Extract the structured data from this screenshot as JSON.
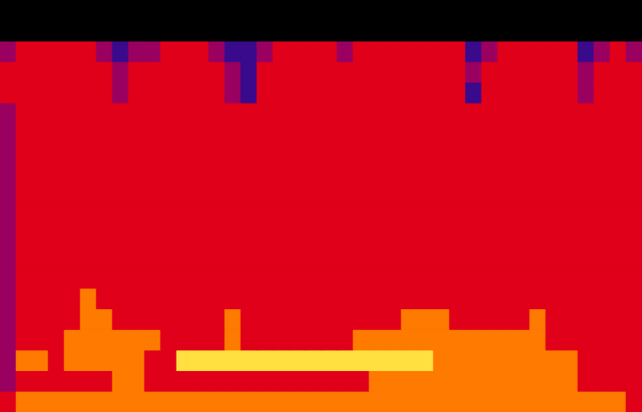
{
  "chart_data": {
    "type": "heatmap",
    "tick_labels": false,
    "grid": false,
    "cells": [
      [
        0,
        0,
        0,
        0,
        0,
        0,
        0,
        0,
        0,
        0,
        0,
        0,
        0,
        0,
        0,
        0,
        0,
        0,
        0,
        0,
        0,
        0,
        0,
        0,
        0,
        0,
        0,
        0,
        0,
        0,
        0,
        0,
        0,
        0,
        0,
        0,
        0,
        0,
        0,
        0
      ],
      [
        0,
        0,
        0,
        0,
        0,
        0,
        0,
        0,
        0,
        0,
        0,
        0,
        0,
        0,
        0,
        0,
        0,
        0,
        0,
        0,
        0,
        0,
        0,
        0,
        0,
        0,
        0,
        0,
        0,
        0,
        0,
        0,
        0,
        0,
        0,
        0,
        0,
        0,
        0,
        0
      ],
      [
        2,
        3,
        3,
        3,
        3,
        3,
        2,
        1,
        2,
        2,
        3,
        3,
        3,
        2,
        1,
        1,
        2,
        3,
        3,
        3,
        3,
        2,
        3,
        3,
        3,
        3,
        3,
        3,
        3,
        1,
        2,
        3,
        3,
        3,
        3,
        3,
        1,
        2,
        3,
        2
      ],
      [
        3,
        3,
        3,
        3,
        3,
        3,
        3,
        2,
        3,
        3,
        3,
        3,
        3,
        3,
        2,
        1,
        3,
        3,
        3,
        3,
        3,
        3,
        3,
        3,
        3,
        3,
        3,
        3,
        3,
        2,
        3,
        3,
        3,
        3,
        3,
        3,
        2,
        3,
        3,
        3
      ],
      [
        3,
        3,
        3,
        3,
        3,
        3,
        3,
        2,
        3,
        3,
        3,
        3,
        3,
        3,
        2,
        1,
        3,
        3,
        3,
        3,
        3,
        3,
        3,
        3,
        3,
        3,
        3,
        3,
        3,
        1,
        3,
        3,
        3,
        3,
        3,
        3,
        2,
        3,
        3,
        3
      ],
      [
        2,
        3,
        3,
        3,
        3,
        3,
        3,
        3,
        3,
        3,
        3,
        3,
        3,
        3,
        3,
        3,
        3,
        3,
        3,
        3,
        3,
        3,
        3,
        3,
        3,
        3,
        3,
        3,
        3,
        3,
        3,
        3,
        3,
        3,
        3,
        3,
        3,
        3,
        3,
        3
      ],
      [
        2,
        3,
        3,
        3,
        3,
        3,
        3,
        3,
        3,
        3,
        3,
        3,
        3,
        3,
        3,
        3,
        3,
        3,
        3,
        3,
        3,
        3,
        3,
        3,
        3,
        3,
        3,
        3,
        3,
        3,
        3,
        3,
        3,
        3,
        3,
        3,
        3,
        3,
        3,
        3
      ],
      [
        2,
        3,
        3,
        3,
        3,
        3,
        3,
        3,
        3,
        3,
        3,
        3,
        3,
        3,
        3,
        3,
        3,
        3,
        3,
        3,
        3,
        3,
        3,
        3,
        3,
        3,
        3,
        3,
        3,
        3,
        3,
        3,
        3,
        3,
        3,
        3,
        3,
        3,
        3,
        3
      ],
      [
        2,
        3,
        3,
        3,
        3,
        3,
        3,
        3,
        3,
        3,
        3,
        3,
        3,
        3,
        3,
        3,
        3,
        3,
        3,
        3,
        3,
        3,
        3,
        3,
        3,
        3,
        3,
        3,
        3,
        3,
        3,
        3,
        3,
        3,
        3,
        3,
        3,
        3,
        3,
        3
      ],
      [
        2,
        3,
        3,
        3,
        3,
        3,
        3,
        3,
        3,
        3,
        3,
        3,
        3,
        3,
        3,
        3,
        3,
        3,
        3,
        3,
        3,
        3,
        3,
        3,
        3,
        3,
        3,
        3,
        3,
        3,
        3,
        3,
        3,
        3,
        3,
        3,
        3,
        3,
        3,
        3
      ],
      [
        2,
        3,
        3,
        3,
        3,
        3,
        3,
        3,
        3,
        3,
        3,
        3,
        3,
        3,
        3,
        3,
        3,
        3,
        3,
        3,
        3,
        3,
        3,
        3,
        3,
        3,
        3,
        3,
        3,
        3,
        3,
        3,
        3,
        3,
        3,
        3,
        3,
        3,
        3,
        3
      ],
      [
        2,
        3,
        3,
        3,
        3,
        3,
        3,
        3,
        3,
        3,
        3,
        3,
        3,
        3,
        3,
        3,
        3,
        3,
        3,
        3,
        3,
        3,
        3,
        3,
        3,
        3,
        3,
        3,
        3,
        3,
        3,
        3,
        3,
        3,
        3,
        3,
        3,
        3,
        3,
        3
      ],
      [
        2,
        3,
        3,
        3,
        3,
        3,
        3,
        3,
        3,
        3,
        3,
        3,
        3,
        3,
        3,
        3,
        3,
        3,
        3,
        3,
        3,
        3,
        3,
        3,
        3,
        3,
        3,
        3,
        3,
        3,
        3,
        3,
        3,
        3,
        3,
        3,
        3,
        3,
        3,
        3
      ],
      [
        2,
        3,
        3,
        3,
        3,
        3,
        3,
        3,
        3,
        3,
        3,
        3,
        3,
        3,
        3,
        3,
        3,
        3,
        3,
        3,
        3,
        3,
        3,
        3,
        3,
        3,
        3,
        3,
        3,
        3,
        3,
        3,
        3,
        3,
        3,
        3,
        3,
        3,
        3,
        3
      ],
      [
        2,
        3,
        3,
        3,
        3,
        4,
        3,
        3,
        3,
        3,
        3,
        3,
        3,
        3,
        3,
        3,
        3,
        3,
        3,
        3,
        3,
        3,
        3,
        3,
        3,
        3,
        3,
        3,
        3,
        3,
        3,
        3,
        3,
        3,
        3,
        3,
        3,
        3,
        3,
        3
      ],
      [
        2,
        3,
        3,
        3,
        3,
        4,
        4,
        3,
        3,
        3,
        3,
        3,
        3,
        3,
        4,
        3,
        3,
        3,
        3,
        3,
        3,
        3,
        3,
        3,
        3,
        4,
        4,
        4,
        3,
        3,
        3,
        3,
        3,
        4,
        3,
        3,
        3,
        3,
        3,
        3
      ],
      [
        2,
        3,
        3,
        3,
        4,
        4,
        4,
        4,
        4,
        4,
        3,
        3,
        3,
        3,
        4,
        3,
        3,
        3,
        3,
        3,
        3,
        3,
        4,
        4,
        4,
        4,
        4,
        4,
        4,
        4,
        4,
        4,
        4,
        4,
        3,
        3,
        3,
        3,
        3,
        3
      ],
      [
        2,
        4,
        4,
        3,
        4,
        4,
        4,
        4,
        4,
        3,
        3,
        5,
        5,
        5,
        5,
        5,
        5,
        5,
        5,
        5,
        5,
        5,
        5,
        5,
        5,
        5,
        5,
        4,
        4,
        4,
        4,
        4,
        4,
        4,
        4,
        4,
        3,
        3,
        3,
        3
      ],
      [
        2,
        3,
        3,
        3,
        3,
        3,
        3,
        4,
        4,
        3,
        3,
        3,
        3,
        3,
        3,
        3,
        3,
        3,
        3,
        3,
        3,
        3,
        3,
        4,
        4,
        4,
        4,
        4,
        4,
        4,
        4,
        4,
        4,
        4,
        4,
        4,
        3,
        3,
        3,
        3
      ],
      [
        3,
        4,
        4,
        4,
        4,
        4,
        4,
        4,
        4,
        4,
        4,
        4,
        4,
        4,
        4,
        4,
        4,
        4,
        4,
        4,
        4,
        4,
        4,
        4,
        4,
        4,
        4,
        4,
        4,
        4,
        4,
        4,
        4,
        4,
        4,
        4,
        4,
        4,
        4,
        3
      ]
    ]
  }
}
